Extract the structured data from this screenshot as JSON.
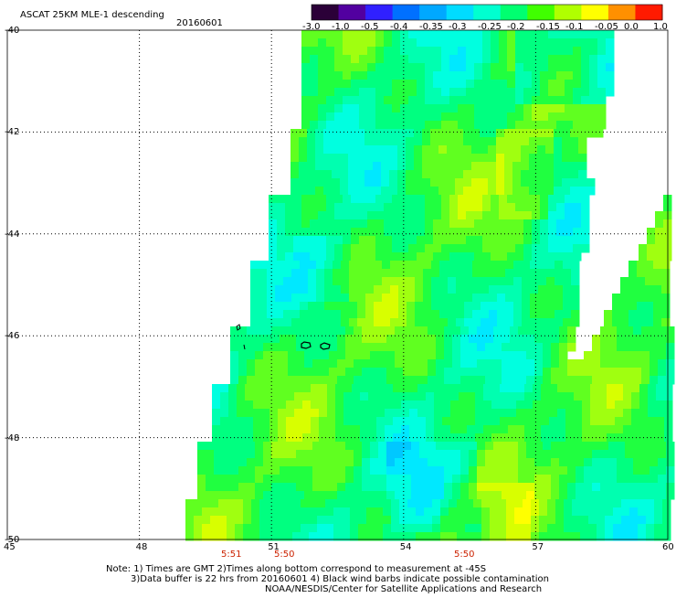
{
  "header": {
    "title": "ASCAT 25KM MLE-1 descending",
    "date": "20160601"
  },
  "colorbar": {
    "labels": [
      "-3.0",
      "-1.0",
      "-0.5",
      "-0.4",
      "-0.35",
      "-0.3",
      "-0.25",
      "-0.2",
      "-0.15",
      "-0.1",
      "-0.05",
      "0.0",
      "1.0"
    ],
    "colors": [
      "#2b0038",
      "#5200a0",
      "#3020ff",
      "#0070ff",
      "#00a8ff",
      "#00dcff",
      "#00ffd0",
      "#00ff70",
      "#40ff00",
      "#b0ff00",
      "#ffff00",
      "#ff9000",
      "#ff1a00"
    ]
  },
  "map": {
    "lat_labels": [
      "-40",
      "-42",
      "-44",
      "-46",
      "-48",
      "-50"
    ],
    "lon_labels": [
      "45",
      "48",
      "51",
      "54",
      "57",
      "60"
    ],
    "time_labels": [
      "5:51",
      "5:50",
      "5:50"
    ]
  },
  "footer": {
    "line1": "Note: 1) Times are GMT 2)Times along bottom correspond to measurement at -45S",
    "line2": "3)Data buffer is 22 hrs from 20160601 4) Black wind barbs indicate possible contamination",
    "line3": "NOAA/NESDIS/Center for Satellite Applications and Research"
  },
  "chart_data": {
    "type": "heatmap",
    "title": "ASCAT 25KM MLE-1 descending",
    "date": "20160601",
    "xlim": [
      45,
      60
    ],
    "ylim": [
      -50,
      -40
    ],
    "x_ticks": [
      45,
      48,
      51,
      54,
      57,
      60
    ],
    "y_ticks": [
      -40,
      -42,
      -44,
      -46,
      -48,
      -50
    ],
    "color_scale": [
      -3.0,
      -1.0,
      -0.5,
      -0.4,
      -0.35,
      -0.3,
      -0.25,
      -0.2,
      -0.15,
      -0.1,
      -0.05,
      0.0,
      1.0
    ],
    "times_gmt": [
      {
        "lon": 50.0,
        "time": "5:51"
      },
      {
        "lon": 51.2,
        "time": "5:50"
      },
      {
        "lon": 55.3,
        "time": "5:50"
      }
    ],
    "grid": true,
    "legend": "top-right colorbar"
  }
}
